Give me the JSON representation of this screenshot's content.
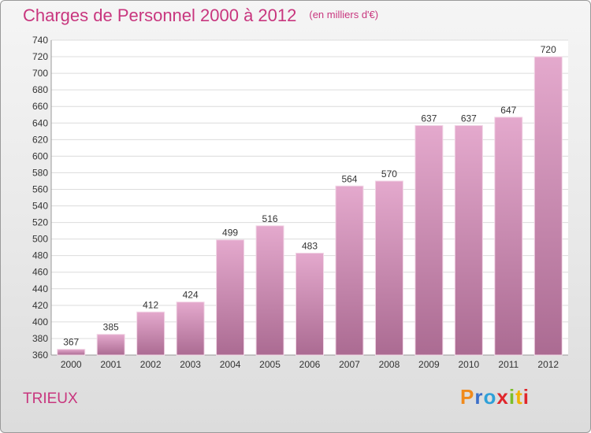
{
  "header": {
    "title": "Charges de Personnel 2000 à 2012",
    "unit": "(en milliers d'€)"
  },
  "footer": {
    "commune": "TRIEUX",
    "logo_text": "Proxiti"
  },
  "colors": {
    "title": "#c8367e",
    "bar_top": "#e2a6cb",
    "bar_bottom": "#ad6d94"
  },
  "chart_data": {
    "type": "bar",
    "title": "Charges de Personnel 2000 à 2012",
    "subtitle": "(en milliers d'€)",
    "categories": [
      "2000",
      "2001",
      "2002",
      "2003",
      "2004",
      "2005",
      "2006",
      "2007",
      "2008",
      "2009",
      "2010",
      "2011",
      "2012"
    ],
    "values": [
      367,
      385,
      412,
      424,
      499,
      516,
      483,
      564,
      570,
      637,
      637,
      647,
      720
    ],
    "ylim": [
      360,
      740
    ],
    "yticks": [
      360,
      380,
      400,
      420,
      440,
      460,
      480,
      500,
      520,
      540,
      560,
      580,
      600,
      620,
      640,
      660,
      680,
      700,
      720,
      740
    ],
    "grid": true
  }
}
